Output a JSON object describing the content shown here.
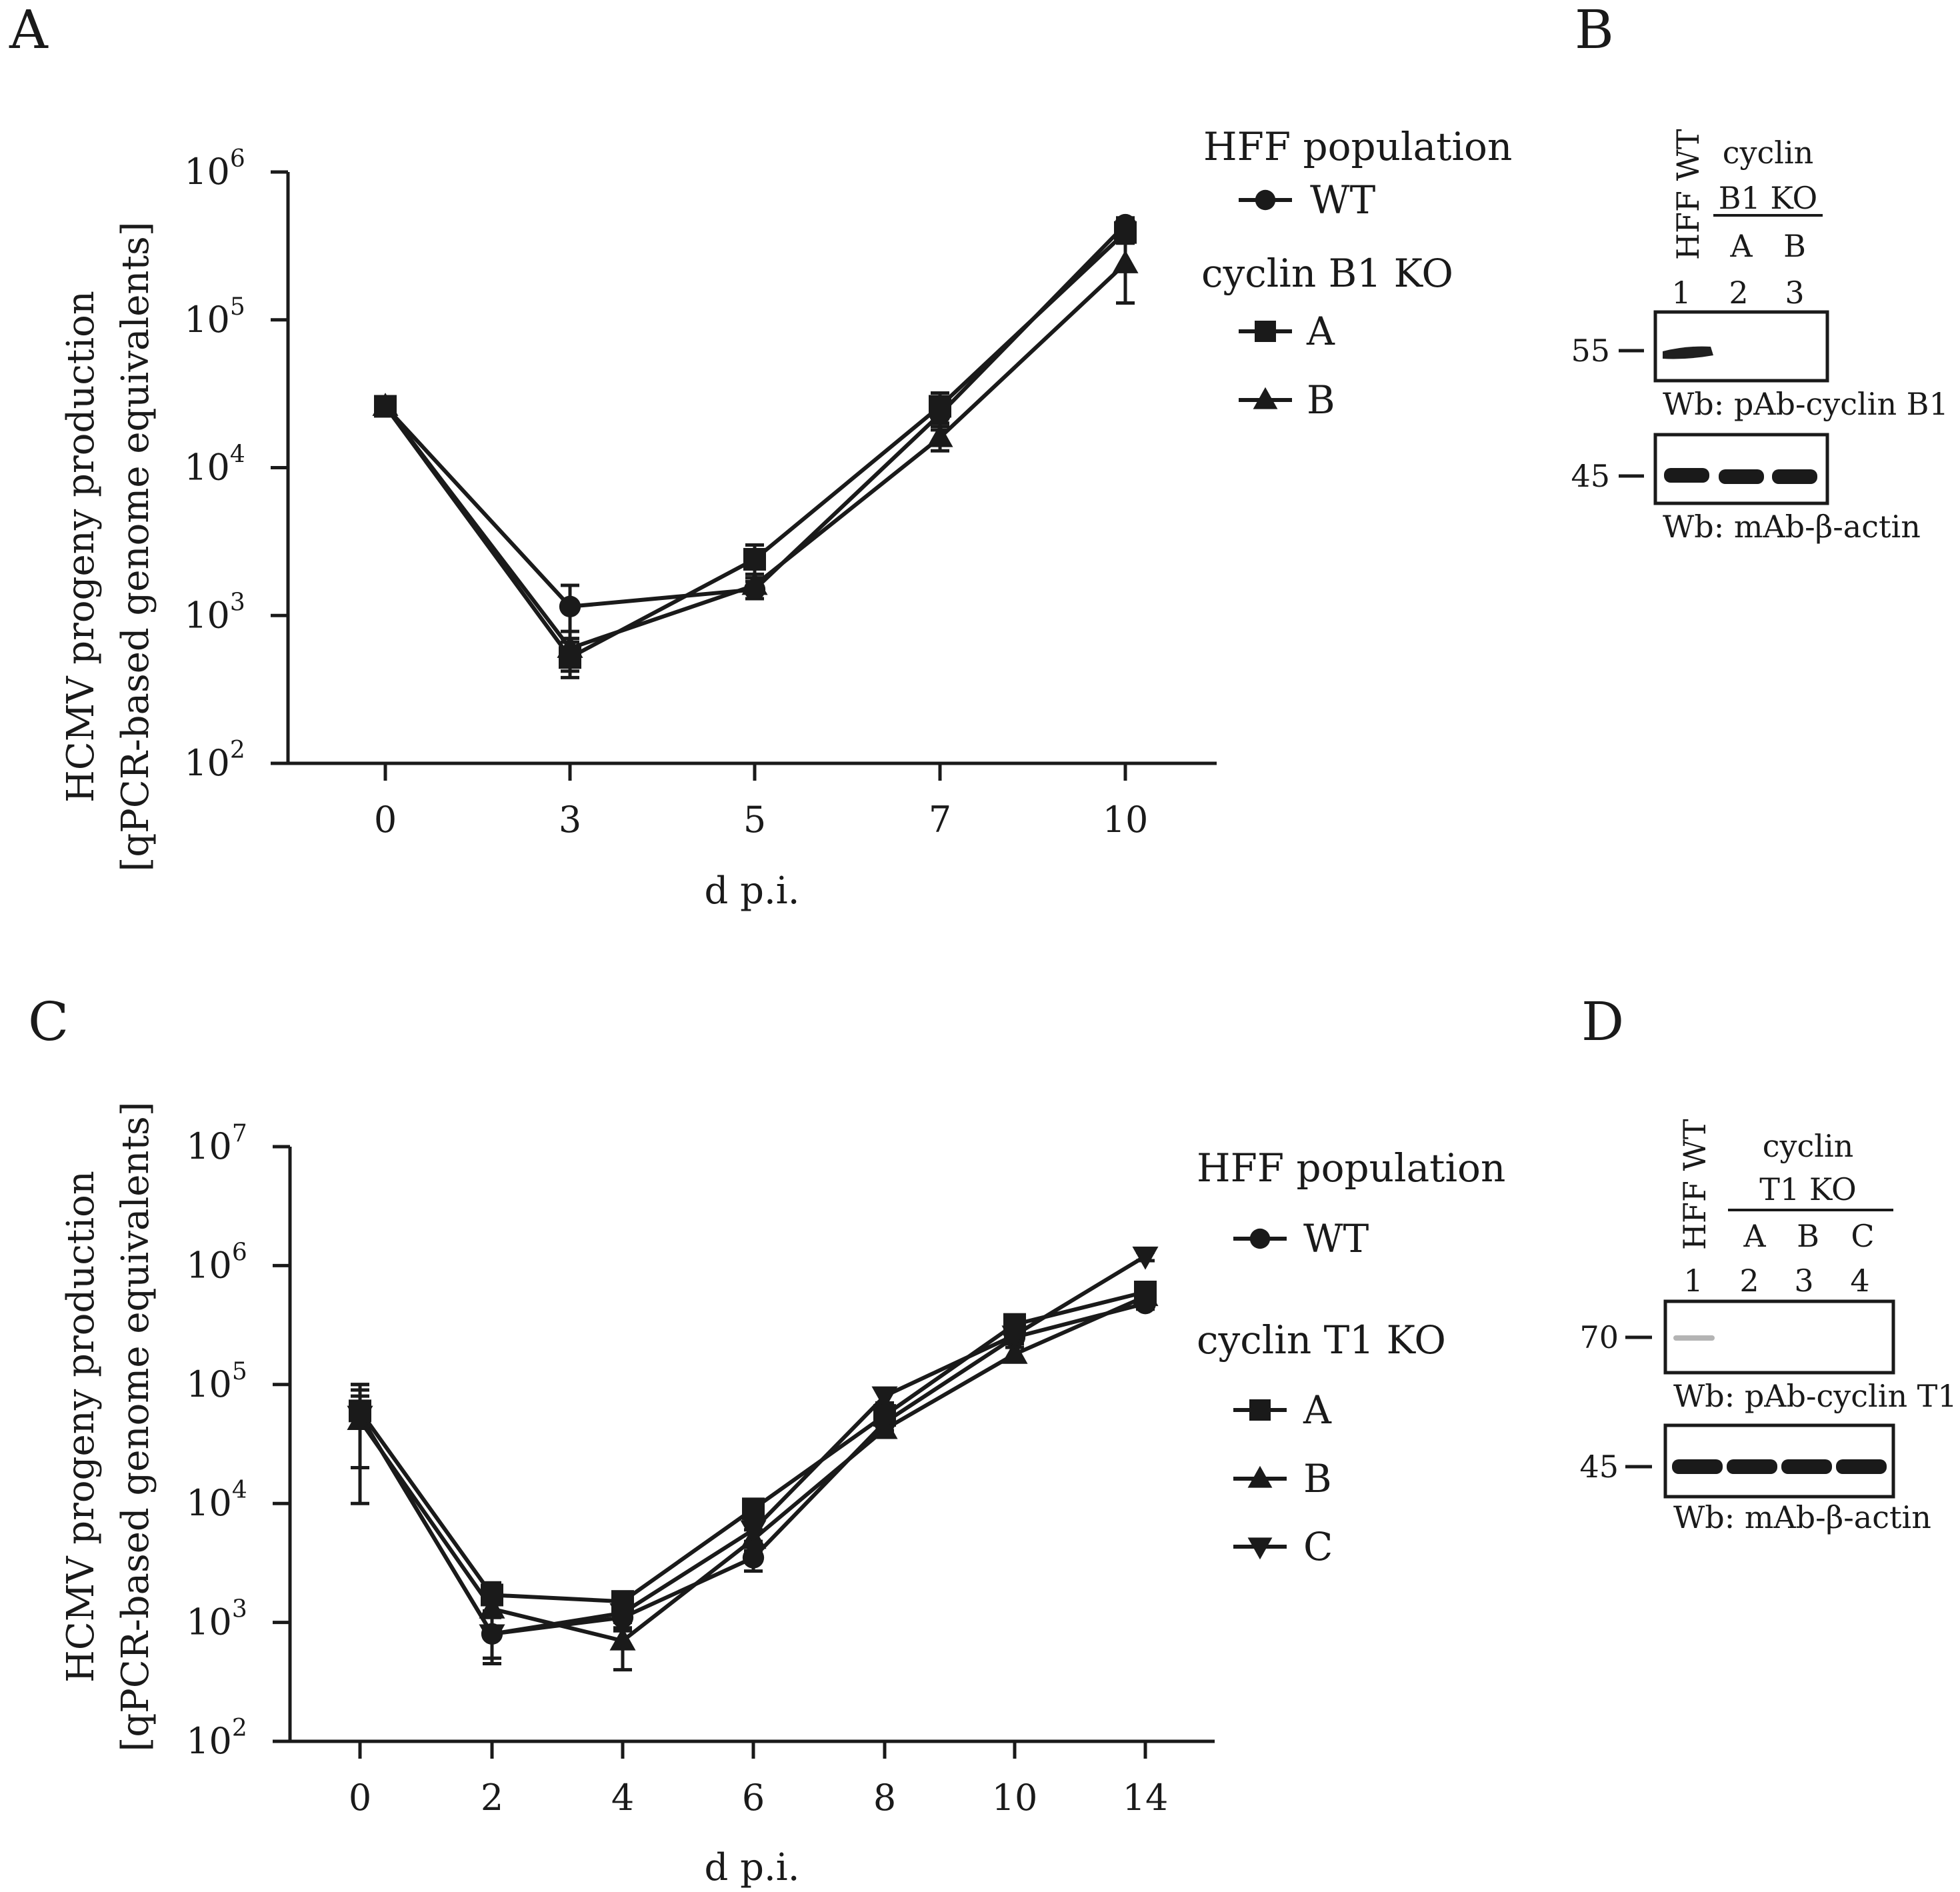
{
  "panel_labels": {
    "A": "A",
    "B": "B",
    "C": "C",
    "D": "D"
  },
  "chart_data": [
    {
      "type": "line",
      "panel": "A",
      "title": "",
      "xlabel": "d p.i.",
      "ylabel": [
        "HCMV progeny production",
        "[qPCR-based genome equivalents]"
      ],
      "yscale": "log",
      "ylim": [
        100,
        1000000
      ],
      "y_ticks": [
        {
          "base": "10",
          "exp": "2"
        },
        {
          "base": "10",
          "exp": "3"
        },
        {
          "base": "10",
          "exp": "4"
        },
        {
          "base": "10",
          "exp": "5"
        },
        {
          "base": "10",
          "exp": "6"
        }
      ],
      "categories": [
        "0",
        "3",
        "5",
        "7",
        "10"
      ],
      "legend": {
        "title": "HFF population",
        "group_title": "cyclin B1 KO"
      },
      "series": [
        {
          "name": "WT",
          "marker": "circle",
          "values": [
            26000,
            1150,
            1500,
            23000,
            440000
          ],
          "err": [
            0,
            450,
            200,
            5000,
            50000
          ]
        },
        {
          "name": "A",
          "marker": "square",
          "values": [
            26000,
            520,
            2400,
            26000,
            390000
          ],
          "err": [
            0,
            140,
            600,
            6000,
            60000
          ]
        },
        {
          "name": "B",
          "marker": "triangle-up",
          "values": [
            26000,
            600,
            1600,
            16000,
            240000
          ],
          "err": [
            0,
            180,
            300,
            3000,
            110000
          ]
        }
      ]
    },
    {
      "type": "line",
      "panel": "C",
      "title": "",
      "xlabel": "d p.i.",
      "ylabel": [
        "HCMV progeny production",
        "[qPCR-based genome equivalents]"
      ],
      "yscale": "log",
      "ylim": [
        100,
        10000000
      ],
      "y_ticks": [
        {
          "base": "10",
          "exp": "2"
        },
        {
          "base": "10",
          "exp": "3"
        },
        {
          "base": "10",
          "exp": "4"
        },
        {
          "base": "10",
          "exp": "5"
        },
        {
          "base": "10",
          "exp": "6"
        },
        {
          "base": "10",
          "exp": "7"
        }
      ],
      "categories": [
        "0",
        "2",
        "4",
        "6",
        "8",
        "10",
        "14"
      ],
      "legend": {
        "title": "HFF population",
        "group_title": "cyclin  T1 KO"
      },
      "series": [
        {
          "name": "WT",
          "marker": "circle",
          "values": [
            55000,
            800,
            1100,
            3500,
            48000,
            250000,
            480000
          ],
          "err": [
            45000,
            350,
            250,
            800,
            7000,
            30000,
            50000
          ]
        },
        {
          "name": "A",
          "marker": "square",
          "values": [
            60000,
            1700,
            1500,
            9000,
            55000,
            320000,
            600000
          ],
          "err": [
            40000,
            450,
            300,
            1500,
            8000,
            30000,
            80000
          ]
        },
        {
          "name": "B",
          "marker": "triangle-up",
          "values": [
            50000,
            1300,
            700,
            5000,
            42000,
            180000,
            550000
          ],
          "err": [
            30000,
            400,
            300,
            1000,
            6000,
            25000,
            60000
          ]
        },
        {
          "name": "C",
          "marker": "triangle-down",
          "values": [
            55000,
            800,
            1200,
            6000,
            80000,
            260000,
            1200000
          ],
          "err": [
            35000,
            300,
            300,
            1200,
            10000,
            30000,
            100000
          ]
        }
      ]
    }
  ],
  "blots": {
    "B": {
      "sample_label": "HFF WT",
      "group_label_1": "cyclin",
      "group_label_2": "B1 KO",
      "clones": [
        "A",
        "B"
      ],
      "lanes": [
        "1",
        "2",
        "3"
      ],
      "top_marker": "55",
      "top_caption": "Wb: pAb-cyclin B1",
      "bottom_marker": "45",
      "bottom_caption": "Wb: mAb-β-actin"
    },
    "D": {
      "sample_label": "HFF WT",
      "group_label_1": "cyclin",
      "group_label_2": "T1 KO",
      "clones": [
        "A",
        "B",
        "C"
      ],
      "lanes": [
        "1",
        "2",
        "3",
        "4"
      ],
      "top_marker": "70",
      "top_caption": "Wb: pAb-cyclin T1",
      "bottom_marker": "45",
      "bottom_caption": "Wb: mAb-β-actin"
    }
  }
}
